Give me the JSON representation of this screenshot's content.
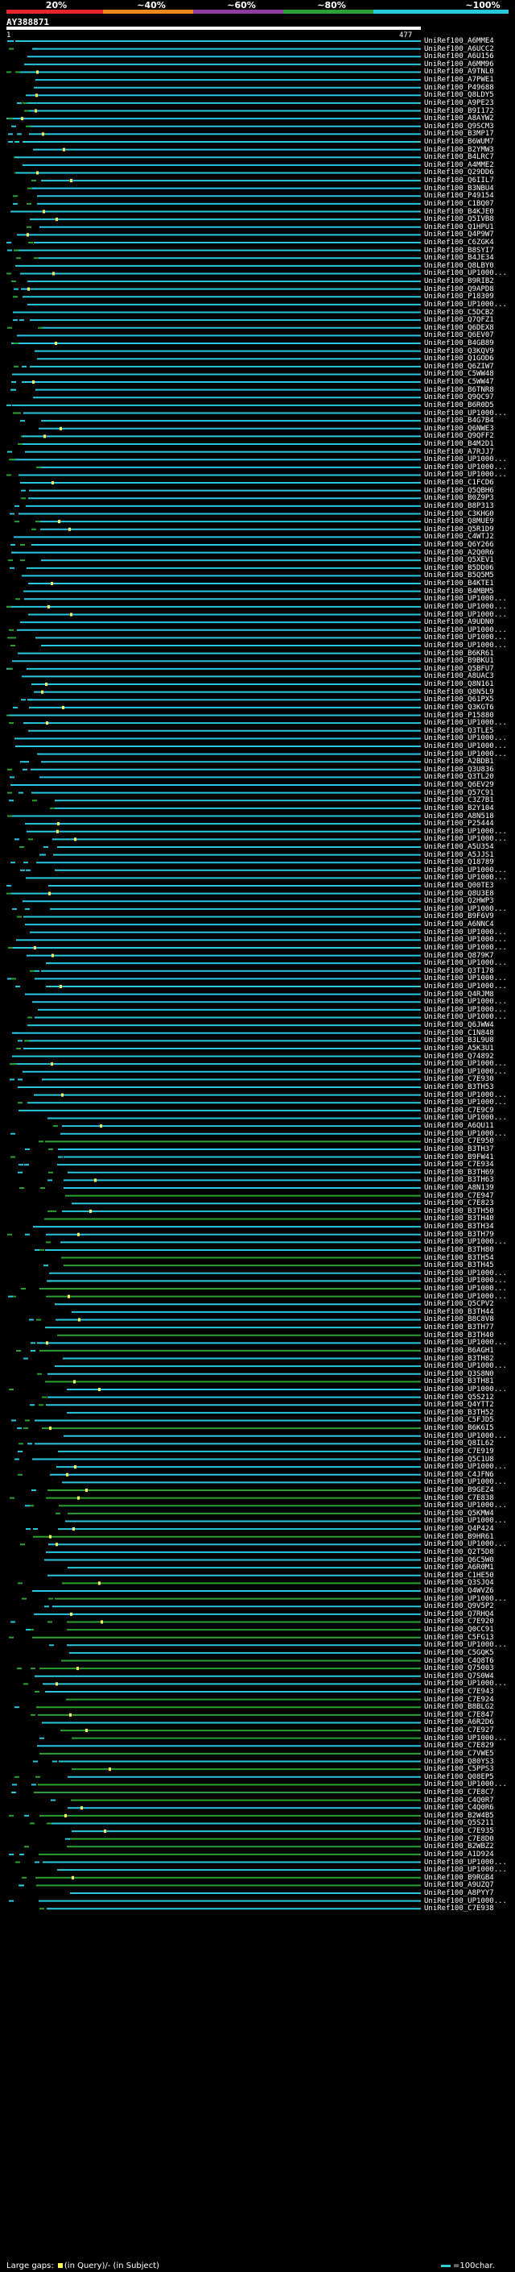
{
  "chart_data": {
    "type": "alignment-overview",
    "query": {
      "name": "AY388871",
      "start": 1,
      "end": 477
    },
    "identity_scale": {
      "labels": [
        "20%",
        "~40%",
        "~60%",
        "~80%",
        "~100%"
      ],
      "colors": [
        "#e8252b",
        "#ee8a1c",
        "#8e3ea0",
        "#2aa132",
        "#27c8e0"
      ]
    },
    "legend": {
      "gaps_text": "Large gaps:",
      "query_gap": "(in Query)/",
      "subject_gap": "- (in Subject)",
      "length_text": "=100char."
    },
    "hits": [
      "UniRef100_A6MME4",
      "UniRef100_A6UCC2",
      "UniRef100_A6U156",
      "UniRef100_A6MM96",
      "UniRef100_A9TNL0",
      "UniRef100_A7PWE1",
      "UniRef100_P49688",
      "UniRef100_Q8LDY5",
      "UniRef100_A9PE23",
      "UniRef100_B9I172",
      "UniRef100_A8AYW2",
      "UniRef100_Q9SCM3",
      "UniRef100_B3MP17",
      "UniRef100_B6WUM7",
      "UniRef100_B2YMW3",
      "UniRef100_B4LRC7",
      "UniRef100_A4MME2",
      "UniRef100_Q29DD6",
      "UniRef100_Q6IIL7",
      "UniRef100_B3NBU4",
      "UniRef100_P49154",
      "UniRef100_C1BQ07",
      "UniRef100_B4KJE0",
      "UniRef100_Q5IVB8",
      "UniRef100_Q1HPU1",
      "UniRef100_Q4P9W7",
      "UniRef100_C6ZGK4",
      "UniRef100_B8SYI7",
      "UniRef100_B4JE34",
      "UniRef100_Q8LBY0",
      "UniRef100_UP1000...",
      "UniRef100_B9RIB2",
      "UniRef100_Q9APD8",
      "UniRef100_P18309",
      "UniRef100_UP1000...",
      "UniRef100_C5DCB2",
      "UniRef100_Q7QFZ1",
      "UniRef100_Q6DEX8",
      "UniRef100_Q6EV07",
      "UniRef100_B4GB89",
      "UniRef100_Q3KQV9",
      "UniRef100_Q1GOD6",
      "UniRef100_Q6ZIW7",
      "UniRef100_C5WW48",
      "UniRef100_C5WW47",
      "UniRef100_B6TNR8",
      "UniRef100_Q9QC97",
      "UniRef100_B6R0D5",
      "UniRef100_UP1000...",
      "UniRef100_B4G7B4",
      "UniRef100_Q6NWE3",
      "UniRef100_Q9QFF2",
      "UniRef100_B4M2D1",
      "UniRef100_A7RJJ7",
      "UniRef100_UP1000...",
      "UniRef100_UP1000...",
      "UniRef100_UP1000...",
      "UniRef100_C1FCD6",
      "UniRef100_Q5QBH6",
      "UniRef100_B0Z9P3",
      "UniRef100_B8P313",
      "UniRef100_C3KHG0",
      "UniRef100_Q8MUE9",
      "UniRef100_Q5R1D9",
      "UniRef100_C4WTJ2",
      "UniRef100_Q6Y266",
      "UniRef100_A2Q0R6",
      "UniRef100_Q5XEV1",
      "UniRef100_B5DD06",
      "UniRef100_B5Q5M5",
      "UniRef100_B4KTE1",
      "UniRef100_B4MBM5",
      "UniRef100_UP1000...",
      "UniRef100_UP1000...",
      "UniRef100_UP1000...",
      "UniRef100_A9UDN0",
      "UniRef100_UP1000...",
      "UniRef100_UP1000...",
      "UniRef100_UP1000...",
      "UniRef100_B6KR61",
      "UniRef100_B9BKU1",
      "UniRef100_Q5BFU7",
      "UniRef100_A8UAC3",
      "UniRef100_Q8N161",
      "UniRef100_Q8N5L9",
      "UniRef100_Q61PX5",
      "UniRef100_Q3KGT6",
      "UniRef100_P15880",
      "UniRef100_UP1000...",
      "UniRef100_Q3TLE5",
      "UniRef100_UP1000...",
      "UniRef100_UP1000...",
      "UniRef100_UP1000...",
      "UniRef100_A2BDB1",
      "UniRef100_Q3U836",
      "UniRef100_Q3TL20",
      "UniRef100_Q6EV29",
      "UniRef100_Q57C91",
      "UniRef100_C3Z7B1",
      "UniRef100_B2Y104",
      "UniRef100_A8N518",
      "UniRef100_P25444",
      "UniRef100_UP1000...",
      "UniRef100_UP1000...",
      "UniRef100_A5U354",
      "UniRef100_A5JJS1",
      "UniRef100_Q18789",
      "UniRef100_UP1000...",
      "UniRef100_UP1000...",
      "UniRef100_Q00TE3",
      "UniRef100_Q8U3E8",
      "UniRef100_Q2HWP3",
      "UniRef100_UP1000...",
      "UniRef100_B9F6V9",
      "UniRef100_A6NNC4",
      "UniRef100_UP1000...",
      "UniRef100_UP1000...",
      "UniRef100_UP1000...",
      "UniRef100_Q879K7",
      "UniRef100_UP1000...",
      "UniRef100_Q3T178",
      "UniRef100_UP1000...",
      "UniRef100_UP1000...",
      "UniRef100_Q4RJM8",
      "UniRef100_UP1000...",
      "UniRef100_UP1000...",
      "UniRef100_UP1000...",
      "UniRef100_Q6JWW4",
      "UniRef100_C1N848",
      "UniRef100_B3L9U8",
      "UniRef100_A5K3U1",
      "UniRef100_Q74892",
      "UniRef100_UP1000...",
      "UniRef100_UP1000...",
      "UniRef100_C7E930",
      "UniRef100_B3TH53",
      "UniRef100_UP1000...",
      "UniRef100_UP1000...",
      "UniRef100_C7E9C9",
      "UniRef100_UP1000...",
      "UniRef100_A6QU11",
      "UniRef100_UP1000...",
      "UniRef100_C7E950",
      "UniRef100_B3TH37",
      "UniRef100_B9FW41",
      "UniRef100_C7E934",
      "UniRef100_B3TH69",
      "UniRef100_B3TH63",
      "UniRef100_A8N139",
      "UniRef100_C7E947",
      "UniRef100_C7E823",
      "UniRef100_B3TH50",
      "UniRef100_B3TH40",
      "UniRef100_B3TH34",
      "UniRef100_B3TH79",
      "UniRef100_UP1000...",
      "UniRef100_B3TH80",
      "UniRef100_B3TH54",
      "UniRef100_B3TH45",
      "UniRef100_UP1000...",
      "UniRef100_UP1000...",
      "UniRef100_UP1000...",
      "UniRef100_UP1000...",
      "UniRef100_Q5CPV2",
      "UniRef100_B3TH44",
      "UniRef100_B8C8V8",
      "UniRef100_B3TH77",
      "UniRef100_B3TH40",
      "UniRef100_UP1000...",
      "UniRef100_B6AGH1",
      "UniRef100_B3TH82",
      "UniRef100_UP1000...",
      "UniRef100_Q3S8N0",
      "UniRef100_B3TH81",
      "UniRef100_UP1000...",
      "UniRef100_Q5S212",
      "UniRef100_Q4YTT2",
      "UniRef100_B3TH52",
      "UniRef100_C5FJD5",
      "UniRef100_B6K6I5",
      "UniRef100_UP1000...",
      "UniRef100_Q8IL62",
      "UniRef100_C7E919",
      "UniRef100_Q5C1U8",
      "UniRef100_UP1000...",
      "UniRef100_C4JFN6",
      "UniRef100_UP1000...",
      "UniRef100_B9GEZ4",
      "UniRef100_C7E838",
      "UniRef100_UP1000...",
      "UniRef100_Q5KMW4",
      "UniRef100_UP1000...",
      "UniRef100_Q4P424",
      "UniRef100_B9HR61",
      "UniRef100_UP1000...",
      "UniRef100_Q2T5D8",
      "UniRef100_Q6C5W0",
      "UniRef100_A6R0M1",
      "UniRef100_C1HE50",
      "UniRef100_Q3SJQ4",
      "UniRef100_Q4WVZ6",
      "UniRef100_UP1000...",
      "UniRef100_Q9V5P2",
      "UniRef100_Q7RHQ4",
      "UniRef100_C7E920",
      "UniRef100_Q0CC91",
      "UniRef100_C5FG13",
      "UniRef100_UP1000...",
      "UniRef100_C5GQK5",
      "UniRef100_C4Q8T6",
      "UniRef100_Q75003",
      "UniRef100_Q7S0W4",
      "UniRef100_UP1000...",
      "UniRef100_C7E943",
      "UniRef100_C7E924",
      "UniRef100_B8BLG2",
      "UniRef100_C7E847",
      "UniRef100_A6R2D6",
      "UniRef100_C7E927",
      "UniRef100_UP1000...",
      "UniRef100_C7E829",
      "UniRef100_C7VWE5",
      "UniRef100_Q80YS3",
      "UniRef100_C5PPS3",
      "UniRef100_Q08EP5",
      "UniRef100_UP1000...",
      "UniRef100_C7E8C7",
      "UniRef100_C4Q0R7",
      "UniRef100_C4Q0R6",
      "UniRef100_B2W4B5",
      "UniRef100_Q5S211",
      "UniRef100_C7E935",
      "UniRef100_C7E8D0",
      "UniRef100_B2WBZ2",
      "UniRef100_A1D924",
      "UniRef100_UP1000...",
      "UniRef100_UP1000...",
      "UniRef100_B9RGB4",
      "UniRef100_A9UZQ7",
      "UniRef100_A8PYY7",
      "UniRef100_UP1000...",
      "UniRef100_C7E938"
    ]
  }
}
